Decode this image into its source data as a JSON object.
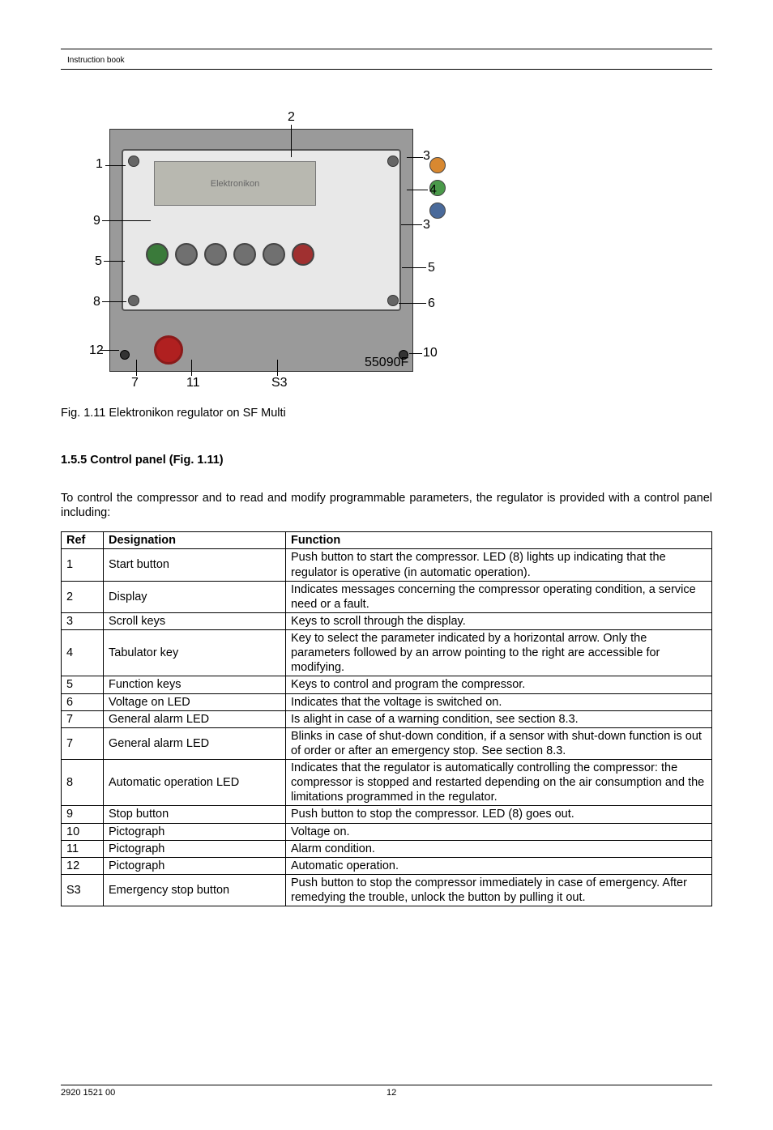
{
  "header": {
    "title": "Instruction book"
  },
  "figure": {
    "display_label": "Elektronikon",
    "id_label": "55090F",
    "callouts": [
      "1",
      "2",
      "3",
      "4",
      "3",
      "5",
      "5",
      "6",
      "7",
      "8",
      "9",
      "10",
      "11",
      "12",
      "S3"
    ],
    "caption": "Fig. 1.11 Elektronikon regulator on SF Multi"
  },
  "section": {
    "title": "1.5.5 Control panel (Fig. 1.11)",
    "intro": "To control the compressor and to read and modify programmable parameters, the regulator is provided with a control panel including:"
  },
  "table": {
    "columns": [
      "Ref",
      "Designation",
      "Function"
    ],
    "rows": [
      {
        "ref": "1",
        "designation": "Start button",
        "function": "Push button to start the compressor.  LED (8) lights up indicating that the regulator is operative (in automatic operation)."
      },
      {
        "ref": "2",
        "designation": "Display",
        "function": "Indicates messages concerning the compressor operating condition, a service need or a fault."
      },
      {
        "ref": "3",
        "designation": "Scroll keys",
        "function": "Keys to scroll through the display."
      },
      {
        "ref": "4",
        "designation": "Tabulator key",
        "function": "Key to select the parameter indicated by a horizontal arrow.  Only the parameters followed by an arrow pointing to the right are accessible for modifying."
      },
      {
        "ref": "5",
        "designation": "Function keys",
        "function": "Keys to control and program the compressor."
      },
      {
        "ref": "6",
        "designation": "Voltage on LED",
        "function": "Indicates that the voltage is switched on."
      },
      {
        "ref": "7",
        "designation": "General alarm LED",
        "function": "Is alight in case of a warning condition, see section 8.3."
      },
      {
        "ref": "7",
        "designation": "General alarm LED",
        "function": "Blinks in case of shut-down condition, if a sensor with shut-down function is out of order or after an emergency stop.  See section 8.3."
      },
      {
        "ref": "8",
        "designation": "Automatic operation LED",
        "function": "Indicates that the regulator is automatically controlling the compressor: the compressor is stopped and restarted depending on the air consumption and the limitations programmed in the regulator."
      },
      {
        "ref": "9",
        "designation": "Stop button",
        "function": "Push button to stop the compressor.  LED (8) goes out."
      },
      {
        "ref": "10",
        "designation": "Pictograph",
        "function": "Voltage on."
      },
      {
        "ref": "11",
        "designation": "Pictograph",
        "function": "Alarm condition."
      },
      {
        "ref": "12",
        "designation": "Pictograph",
        "function": "Automatic operation."
      },
      {
        "ref": "S3",
        "designation": "Emergency stop button",
        "function": "Push button to stop the compressor immediately in case of emergency.  After remedying the trouble, unlock the button by pulling it out."
      }
    ]
  },
  "footer": {
    "doc_number": "2920 1521 00",
    "page_number": "12"
  }
}
